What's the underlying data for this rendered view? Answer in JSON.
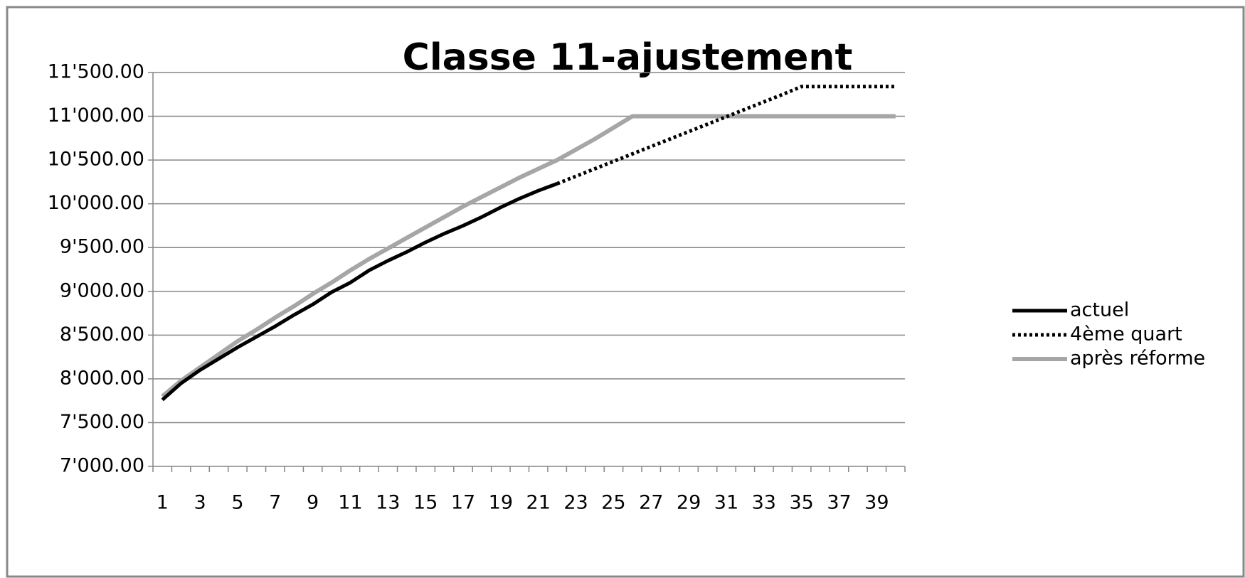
{
  "chart_data": {
    "type": "line",
    "title": "Classe 11-ajustement",
    "categories": [
      1,
      null,
      3,
      null,
      5,
      null,
      7,
      null,
      9,
      null,
      11,
      null,
      13,
      null,
      15,
      null,
      17,
      null,
      19,
      null,
      21,
      null,
      23,
      null,
      25,
      null,
      27,
      null,
      29,
      null,
      31,
      null,
      33,
      null,
      35,
      null,
      37,
      null,
      39,
      null
    ],
    "series": [
      {
        "name": "actuel",
        "color": "#000000",
        "dash": "solid",
        "values": [
          7760,
          7950,
          8100,
          8230,
          8360,
          8480,
          8600,
          8730,
          8850,
          8990,
          9100,
          9240,
          9350,
          9450,
          9560,
          9660,
          9750,
          9850,
          9960,
          10060,
          10150,
          10230,
          null,
          null,
          null,
          null,
          null,
          null,
          null,
          null,
          null,
          null,
          null,
          null,
          null,
          null,
          null,
          null,
          null,
          null
        ]
      },
      {
        "name": "4ème quart",
        "color": "#000000",
        "dash": "dotted",
        "values": [
          null,
          null,
          null,
          null,
          null,
          null,
          null,
          null,
          null,
          null,
          null,
          null,
          null,
          null,
          null,
          null,
          null,
          null,
          null,
          null,
          null,
          10230,
          10315,
          10400,
          10485,
          10570,
          10655,
          10740,
          10825,
          10910,
          10995,
          11080,
          11165,
          11250,
          11340,
          11340,
          11340,
          11340,
          11340,
          11340
        ]
      },
      {
        "name": "après réforme",
        "color": "#a6a6a6",
        "dash": "solid",
        "values": [
          7800,
          7980,
          8130,
          8280,
          8430,
          8560,
          8700,
          8830,
          8970,
          9100,
          9240,
          9370,
          9490,
          9610,
          9730,
          9850,
          9970,
          10080,
          10190,
          10300,
          10400,
          10500,
          10620,
          10740,
          10870,
          11000,
          11000,
          11000,
          11000,
          11000,
          11000,
          11000,
          11000,
          11000,
          11000,
          11000,
          11000,
          11000,
          11000,
          11000
        ]
      }
    ],
    "ylim": [
      7000,
      11500
    ],
    "yticks": [
      {
        "value": 7000,
        "label": "7'000.00"
      },
      {
        "value": 7500,
        "label": "7'500.00"
      },
      {
        "value": 8000,
        "label": "8'000.00"
      },
      {
        "value": 8500,
        "label": "8'500.00"
      },
      {
        "value": 9000,
        "label": "9'000.00"
      },
      {
        "value": 9500,
        "label": "9'500.00"
      },
      {
        "value": 10000,
        "label": "10'000.00"
      },
      {
        "value": 10500,
        "label": "10'500.00"
      },
      {
        "value": 11000,
        "label": "11'000.00"
      },
      {
        "value": 11500,
        "label": "11'500.00"
      }
    ],
    "grid": true,
    "legend": "right"
  }
}
